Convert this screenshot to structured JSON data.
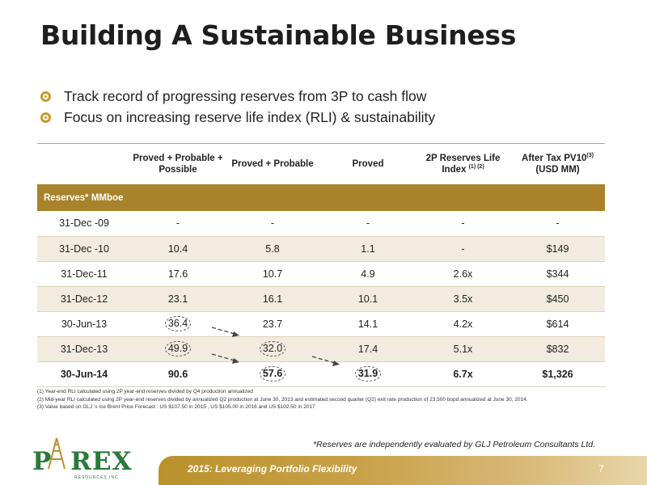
{
  "title": "Building A Sustainable Business",
  "bullets": [
    "Track record of progressing reserves from 3P to cash flow",
    "Focus on increasing reserve life index (RLI) & sustainability"
  ],
  "table": {
    "headers": [
      {
        "text": "",
        "sup": ""
      },
      {
        "text": "Proved + Probable + Possible",
        "sup": ""
      },
      {
        "text": "Proved + Probable",
        "sup": ""
      },
      {
        "text": "Proved",
        "sup": ""
      },
      {
        "text": "2P Reserves Life Index",
        "sup": "(1) (2)"
      },
      {
        "text": "After Tax PV10",
        "sup": "(3)",
        "line2": "(USD MM)"
      }
    ],
    "band_label": "Reserves* MMboe",
    "rows": [
      [
        "31-Dec -09",
        "-",
        "-",
        "-",
        "-",
        "-"
      ],
      [
        "31-Dec -10",
        "10.4",
        "5.8",
        "1.1",
        "-",
        "$149"
      ],
      [
        "31-Dec-11",
        "17.6",
        "10.7",
        "4.9",
        "2.6x",
        "$344"
      ],
      [
        "31-Dec-12",
        "23.1",
        "16.1",
        "10.1",
        "3.5x",
        "$450"
      ],
      [
        "30-Jun-13",
        "36.4",
        "23.7",
        "14.1",
        "4.2x",
        "$614"
      ],
      [
        "31-Dec-13",
        "49.9",
        "32.0",
        "17.4",
        "5.1x",
        "$832"
      ],
      [
        "30-Jun-14",
        "90.6",
        "57.6",
        "31.9",
        "6.7x",
        "$1,326"
      ]
    ]
  },
  "footnotes": [
    "(1)  Year-end RLI calculated using 2P year-end reserves divided by Q4 production annualized",
    "(2)  Mid-year RLI calculated using 2P year-end reserves divided by annualized Q2 production at June 30, 2013  and estimated second quarter (Q2) exit rate production of 23,500 bopd annualized  at June 30, 2014.",
    "(3)  Value based on GLJ 's  Ice Brent Price  Forecast : US $107.50  in 2015 , US $105.00 in 2016  and US $102.50 in 2017"
  ],
  "logo": {
    "text": "PAREX",
    "sub": "RESOURCES INC"
  },
  "disclaimer": "*Reserves are independently evaluated by GLJ Petroleum Consultants Ltd.",
  "footer": {
    "text": "2015: Leveraging Portfolio Flexibility",
    "page": "7"
  },
  "colors": {
    "accent_gold": "#a8832c",
    "logo_green": "#2a7a3c",
    "row_shade": "#f1ecdf"
  }
}
